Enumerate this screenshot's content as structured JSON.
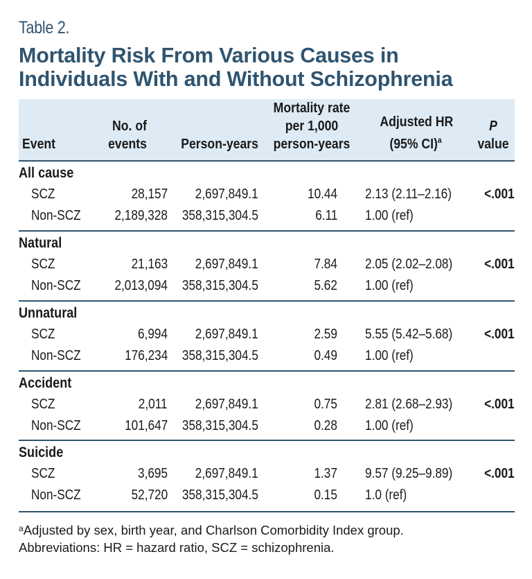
{
  "table_label": "Table 2.",
  "title_lines": [
    "Mortality Risk From Various Causes in",
    "Individuals With and Without Schizophrenia"
  ],
  "columns": {
    "event": "Event",
    "events_1": "No. of",
    "events_2": "events",
    "person_years": "Person-years",
    "rate_1": "Mortality rate",
    "rate_2": "per 1,000",
    "rate_3": "person-years",
    "hr_1": "Adjusted HR",
    "hr_2": "(95% CI)",
    "hr_sup": "a",
    "p_1": "P",
    "p_2": "value"
  },
  "groups": [
    {
      "label": "All cause",
      "rows": [
        {
          "label": "SCZ",
          "events": "28,157",
          "person_years": "2,697,849.1",
          "rate": "10.44",
          "hr": "2.13 (2.11–2.16)",
          "p": "<.001"
        },
        {
          "label": "Non-SCZ",
          "events": "2,189,328",
          "person_years": "358,315,304.5",
          "rate": "6.11",
          "hr": "1.00 (ref)",
          "p": ""
        }
      ]
    },
    {
      "label": "Natural",
      "rows": [
        {
          "label": "SCZ",
          "events": "21,163",
          "person_years": "2,697,849.1",
          "rate": "7.84",
          "hr": "2.05 (2.02–2.08)",
          "p": "<.001"
        },
        {
          "label": "Non-SCZ",
          "events": "2,013,094",
          "person_years": "358,315,304.5",
          "rate": "5.62",
          "hr": "1.00 (ref)",
          "p": ""
        }
      ]
    },
    {
      "label": "Unnatural",
      "rows": [
        {
          "label": "SCZ",
          "events": "6,994",
          "person_years": "2,697,849.1",
          "rate": "2.59",
          "hr": "5.55 (5.42–5.68)",
          "p": "<.001"
        },
        {
          "label": "Non-SCZ",
          "events": "176,234",
          "person_years": "358,315,304.5",
          "rate": "0.49",
          "hr": "1.00 (ref)",
          "p": ""
        }
      ]
    },
    {
      "label": "Accident",
      "rows": [
        {
          "label": "SCZ",
          "events": "2,011",
          "person_years": "2,697,849.1",
          "rate": "0.75",
          "hr": "2.81 (2.68–2.93)",
          "p": "<.001"
        },
        {
          "label": "Non-SCZ",
          "events": "101,647",
          "person_years": "358,315,304.5",
          "rate": "0.28",
          "hr": "1.00 (ref)",
          "p": ""
        }
      ]
    },
    {
      "label": "Suicide",
      "rows": [
        {
          "label": "SCZ",
          "events": "3,695",
          "person_years": "2,697,849.1",
          "rate": "1.37",
          "hr": "9.57 (9.25–9.89)",
          "p": "<.001"
        },
        {
          "label": "Non-SCZ",
          "events": "52,720",
          "person_years": "358,315,304.5",
          "rate": "0.15",
          "hr": "1.0 (ref)",
          "p": ""
        }
      ]
    }
  ],
  "footnotes": {
    "a_marker": "a",
    "a_text": "Adjusted by sex, birth year, and Charlson Comorbidity Index group.",
    "abbrev": "Abbreviations: HR = hazard ratio, SCZ = schizophrenia."
  },
  "colors": {
    "title": "#2f5470",
    "header_bg": "#deebf5",
    "rule": "#2f5470"
  }
}
